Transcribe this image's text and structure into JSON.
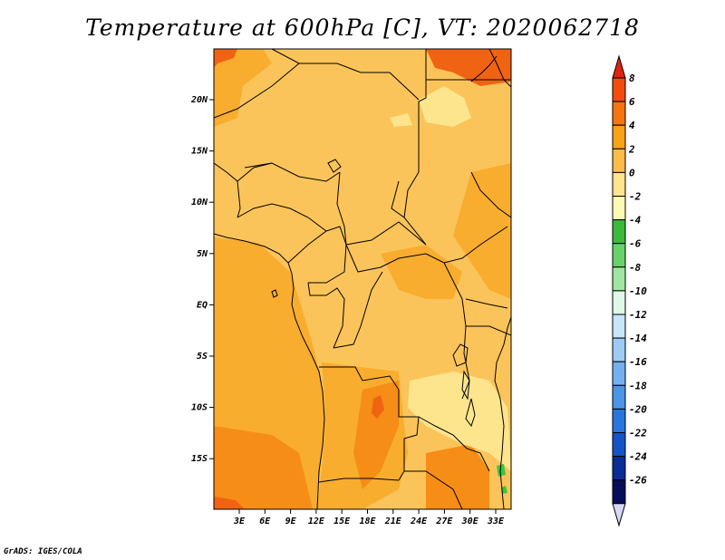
{
  "title": "Temperature at 600hPa [C], VT: 2020062718",
  "credit": "GrADS: IGES/COLA",
  "map": {
    "lat_labels": [
      "20N",
      "15N",
      "10N",
      "5N",
      "EQ",
      "5S",
      "10S",
      "15S"
    ],
    "lon_labels": [
      "3E",
      "6E",
      "9E",
      "12E",
      "15E",
      "18E",
      "21E",
      "24E",
      "27E",
      "30E",
      "33E"
    ],
    "field_colors": {
      "light_yellow": "#fde58e",
      "pale_orange": "#fbc45a",
      "orange": "#f9ad2e",
      "dark_orange": "#f68d16",
      "red_orange": "#f06312",
      "green": "#3cc43c"
    }
  },
  "colorbar": {
    "labels": [
      "8",
      "6",
      "4",
      "2",
      "0",
      "-2",
      "-4",
      "-6",
      "-8",
      "-10",
      "-12",
      "-14",
      "-16",
      "-18",
      "-20",
      "-22",
      "-24",
      "-26"
    ],
    "colors": [
      "#e0240e",
      "#f24c10",
      "#f67510",
      "#f9a21a",
      "#fbbc4a",
      "#fde48d",
      "#fdfab4",
      "#3cba3c",
      "#6ad06a",
      "#a0e6a0",
      "#e0f8e8",
      "#c8e6fa",
      "#9ccbf4",
      "#74b0ee",
      "#4c94e6",
      "#2a76dc",
      "#1454c6",
      "#0a2c96",
      "#060e5a",
      "#d8d8f4"
    ]
  }
}
